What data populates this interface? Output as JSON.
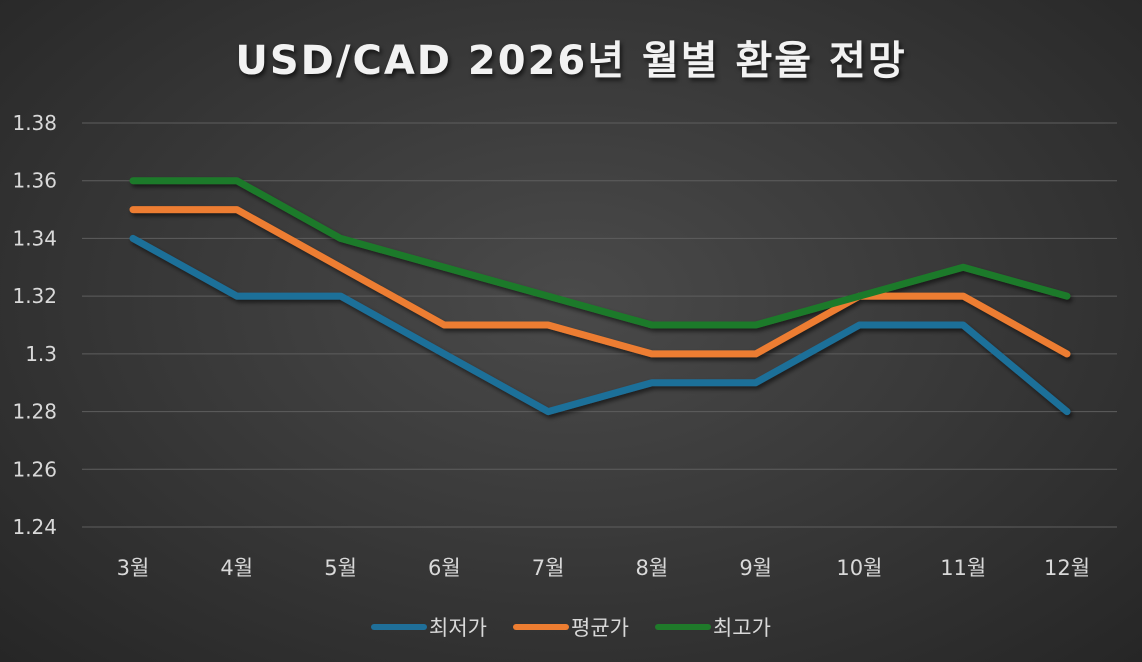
{
  "chart_data": {
    "type": "line",
    "title": "USD/CAD 2026년 월별 환율 전망",
    "xlabel": "",
    "ylabel": "",
    "categories": [
      "3월",
      "4월",
      "5월",
      "6월",
      "7월",
      "8월",
      "9월",
      "10월",
      "11월",
      "12월"
    ],
    "ylim": [
      1.24,
      1.38
    ],
    "yticks": [
      "1.38",
      "1.36",
      "1.34",
      "1.32",
      "1.3",
      "1.28",
      "1.26",
      "1.24"
    ],
    "grid": true,
    "legend_position": "bottom",
    "series": [
      {
        "name": "최저가",
        "color": "#1f6f99",
        "values": [
          1.34,
          1.32,
          1.32,
          1.3,
          1.28,
          1.29,
          1.29,
          1.31,
          1.31,
          1.28
        ]
      },
      {
        "name": "평균가",
        "color": "#ed7d31",
        "values": [
          1.35,
          1.35,
          1.33,
          1.31,
          1.31,
          1.3,
          1.3,
          1.32,
          1.32,
          1.3
        ]
      },
      {
        "name": "최고가",
        "color": "#1f7a2a",
        "values": [
          1.36,
          1.36,
          1.34,
          1.33,
          1.32,
          1.31,
          1.31,
          1.32,
          1.33,
          1.32
        ]
      }
    ]
  }
}
